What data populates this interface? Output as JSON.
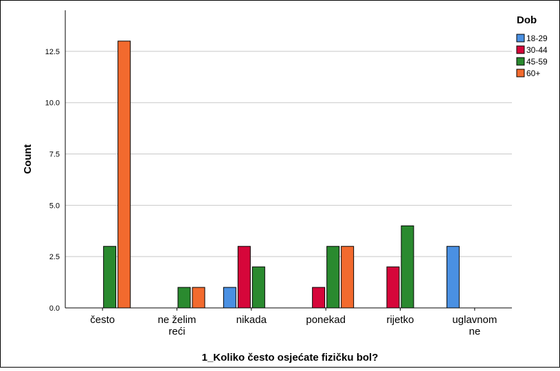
{
  "chart_data": {
    "type": "bar",
    "xlabel": "1_Koliko često osjećate fizičku bol?",
    "ylabel": "Count",
    "ylim": [
      0,
      14.5
    ],
    "yticks": [
      "0.0",
      "2.5",
      "5.0",
      "7.5",
      "10.0",
      "12.5"
    ],
    "ytick_values": [
      0,
      2.5,
      5,
      7.5,
      10,
      12.5
    ],
    "grid": true,
    "legend_position": "top-right",
    "legend_title": "Dob",
    "categories": [
      {
        "label": "često",
        "lines": [
          "često"
        ]
      },
      {
        "label": "ne želim reći",
        "lines": [
          "ne želim",
          "reći"
        ]
      },
      {
        "label": "nikada",
        "lines": [
          "nikada"
        ]
      },
      {
        "label": "ponekad",
        "lines": [
          "ponekad"
        ]
      },
      {
        "label": "rijetko",
        "lines": [
          "rijetko"
        ]
      },
      {
        "label": "uglavnom ne",
        "lines": [
          "uglavnom",
          "ne"
        ]
      }
    ],
    "series": [
      {
        "name": "18-29",
        "color": "#4a90e2",
        "values": [
          0,
          0,
          1,
          0,
          0,
          3
        ]
      },
      {
        "name": "30-44",
        "color": "#d6063a",
        "values": [
          0,
          0,
          3,
          1,
          2,
          0
        ]
      },
      {
        "name": "45-59",
        "color": "#2a8a2f",
        "values": [
          3,
          1,
          2,
          3,
          4,
          0
        ]
      },
      {
        "name": "60+",
        "color": "#f26a2e",
        "values": [
          13,
          1,
          0,
          3,
          0,
          0
        ]
      }
    ]
  }
}
